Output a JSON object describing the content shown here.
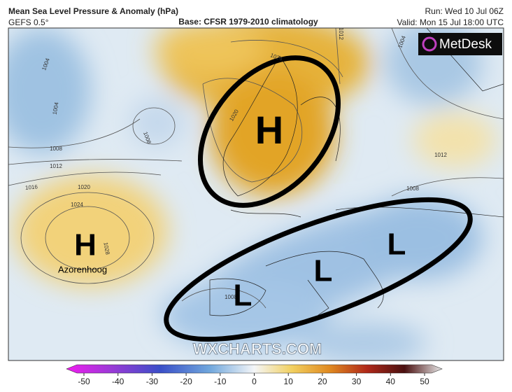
{
  "header": {
    "title": "Mean Sea Level Pressure & Anomaly (hPa)",
    "model": "GEFS 0.5°",
    "base": "Base: CFSR 1979-2010 climatology",
    "run": "Run: Wed 10 Jul 06Z",
    "valid": "Valid: Mon 15 Jul 18:00 UTC"
  },
  "logo": "MetDesk",
  "watermark": "WXCHARTS.COM",
  "map": {
    "isobar_labels": [
      "1004",
      "1004",
      "1008",
      "1012",
      "1016",
      "1020",
      "1024",
      "1028",
      "1008",
      "1020",
      "1024",
      "1012",
      "1004",
      "1012",
      "1008",
      "1008"
    ],
    "systems": [
      "H",
      "H",
      "L",
      "L",
      "L"
    ],
    "place_label": "Azorenhoog"
  },
  "colorbar": {
    "ticks": [
      -50,
      -40,
      -30,
      -20,
      -10,
      0,
      10,
      20,
      30,
      40,
      50
    ]
  }
}
